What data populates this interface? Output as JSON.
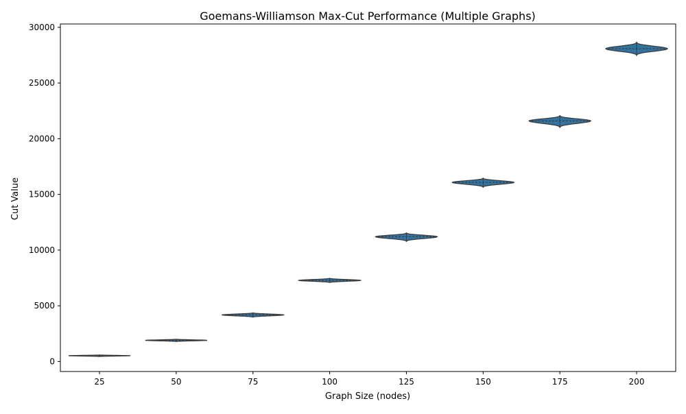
{
  "chart_data": {
    "type": "violin",
    "title": "Goemans-Williamson Max-Cut Performance (Multiple Graphs)",
    "xlabel": "Graph Size (nodes)",
    "ylabel": "Cut Value",
    "ylim": [
      -900,
      30300
    ],
    "yticks": [
      0,
      5000,
      10000,
      15000,
      20000,
      25000,
      30000
    ],
    "grid": false,
    "legend": "none",
    "violin_color": "#3274a1",
    "edge_color": "#3c3c3c",
    "categories": [
      "25",
      "50",
      "75",
      "100",
      "125",
      "150",
      "175",
      "200"
    ],
    "series": [
      {
        "x": "25",
        "median": 520,
        "min": 430,
        "max": 600
      },
      {
        "x": "50",
        "median": 1900,
        "min": 1770,
        "max": 2020
      },
      {
        "x": "75",
        "median": 4180,
        "min": 3950,
        "max": 4400
      },
      {
        "x": "100",
        "median": 7280,
        "min": 7060,
        "max": 7500
      },
      {
        "x": "125",
        "median": 11200,
        "min": 10740,
        "max": 11580
      },
      {
        "x": "150",
        "median": 16080,
        "min": 15600,
        "max": 16500
      },
      {
        "x": "175",
        "median": 21600,
        "min": 20960,
        "max": 22120
      },
      {
        "x": "200",
        "median": 28080,
        "min": 27430,
        "max": 28720
      }
    ]
  }
}
